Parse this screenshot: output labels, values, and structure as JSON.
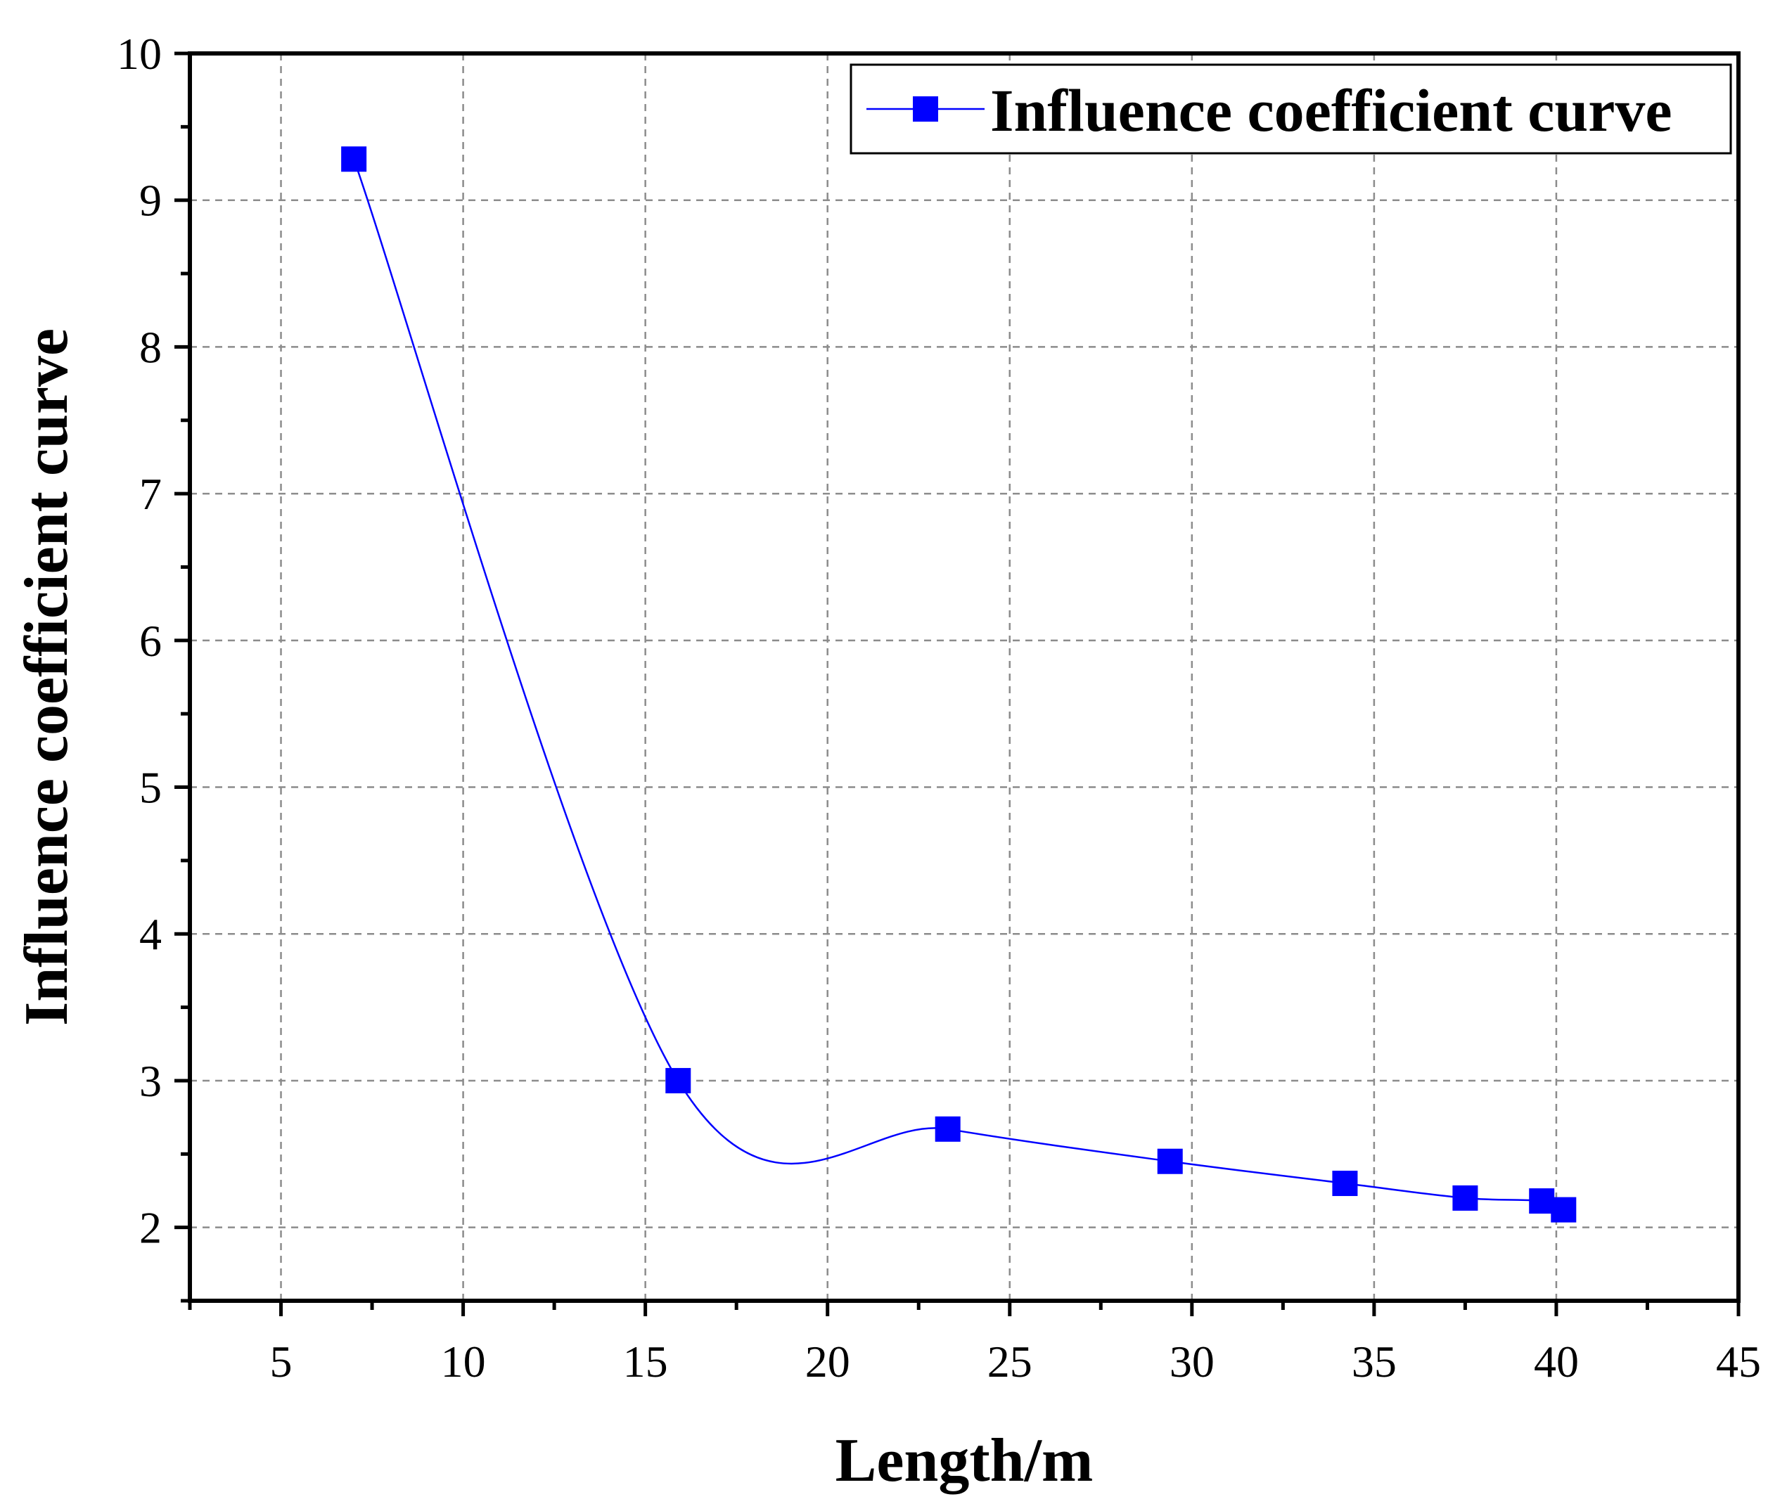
{
  "chart_data": {
    "type": "line",
    "title": "",
    "xlabel": "Length/m",
    "ylabel": "Influence coefficient curve",
    "xlim": [
      2.5,
      45
    ],
    "ylim": [
      1.5,
      10
    ],
    "x_ticks": [
      5,
      10,
      15,
      20,
      25,
      30,
      35,
      40,
      45
    ],
    "y_ticks": [
      2,
      3,
      4,
      5,
      6,
      7,
      8,
      9,
      10
    ],
    "x_minor_step": 2.5,
    "y_minor_step": 0.5,
    "grid": true,
    "legend": {
      "position": "top-right",
      "entries": [
        "Influence coefficient curve"
      ]
    },
    "colors": {
      "series": "#0000ff",
      "frame": "#000000",
      "grid": "#8c8c8c"
    },
    "series": [
      {
        "name": "Influence coefficient curve",
        "marker": "square",
        "smooth": true,
        "x": [
          7.0,
          15.9,
          23.3,
          29.4,
          34.2,
          37.5,
          39.6,
          40.2
        ],
        "y": [
          9.28,
          3.0,
          2.67,
          2.45,
          2.3,
          2.2,
          2.18,
          2.12
        ]
      }
    ]
  }
}
